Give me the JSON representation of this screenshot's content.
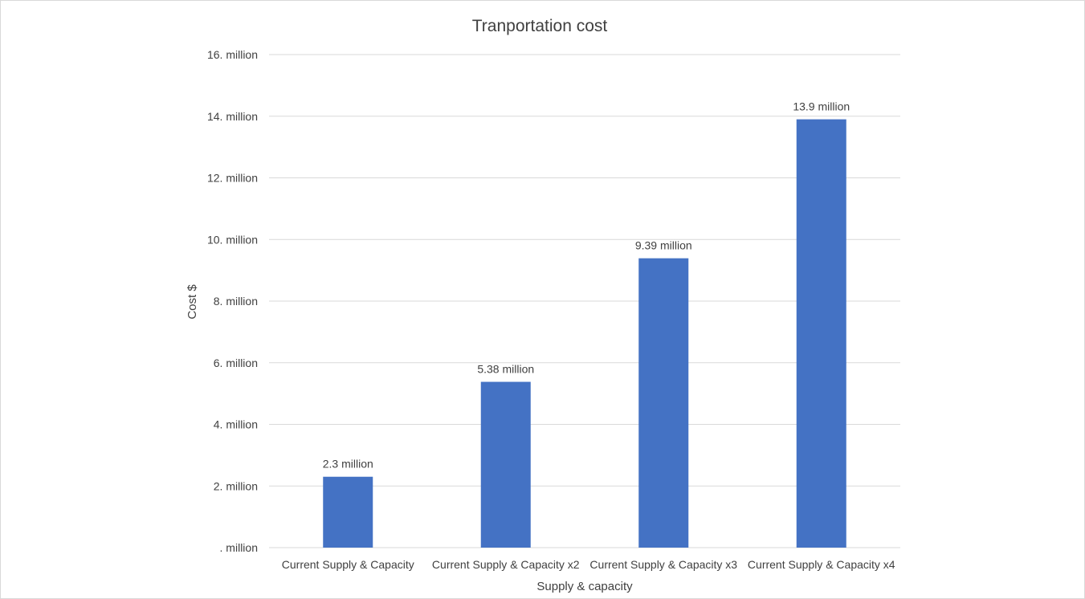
{
  "chart_data": {
    "type": "bar",
    "title": "Tranportation cost",
    "xlabel": "Supply & capacity",
    "ylabel": "Cost $",
    "categories": [
      "Current Supply & Capacity",
      "Current Supply & Capacity x2",
      "Current Supply & Capacity x3",
      "Current Supply & Capacity x4"
    ],
    "values": [
      2.3,
      5.38,
      9.39,
      13.9
    ],
    "value_unit": "million",
    "data_labels": [
      "2.3 million",
      "5.38 million",
      "9.39 million",
      "13.9 million"
    ],
    "ylim": [
      0,
      16
    ],
    "y_ticks": [
      0,
      2,
      4,
      6,
      8,
      10,
      12,
      14,
      16
    ],
    "y_tick_labels": [
      ". million",
      "2. million",
      "4. million",
      "6. million",
      "8. million",
      "10. million",
      "12. million",
      "14. million",
      "16. million"
    ],
    "grid": true,
    "legend": "none",
    "bar_color": "#4472c4"
  }
}
